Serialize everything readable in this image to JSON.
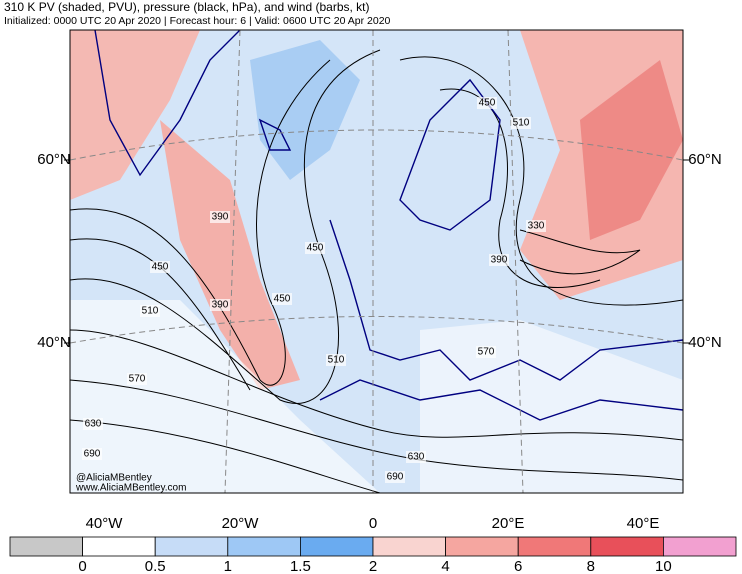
{
  "header": {
    "title": "310 K PV (shaded, PVU), pressure (black, hPa), and wind (barbs, kt)",
    "subtitle": "Initialized: 0000 UTC 20 Apr 2020 | Forecast hour: 6 | Valid: 0600 UTC 20 Apr 2020"
  },
  "latitude_labels": [
    "60°N",
    "40°N"
  ],
  "longitude_labels": [
    "40°W",
    "20°W",
    "0",
    "20°E",
    "40°E"
  ],
  "contour_labels": [
    "510",
    "450",
    "390",
    "450",
    "390",
    "450",
    "510",
    "450",
    "510",
    "570",
    "630",
    "690",
    "630",
    "690",
    "330",
    "390",
    "570"
  ],
  "credits": [
    "@AliciaMBentley",
    "www.AliciaMBentley.com"
  ],
  "colorbar": {
    "ticks": [
      0,
      0.5,
      1,
      1.5,
      2,
      4,
      6,
      8,
      10
    ],
    "colors": [
      "#c8c8c8",
      "#ffffff",
      "#c6dcf7",
      "#9ec8f5",
      "#6aabf0",
      "#f9d4d0",
      "#f5a6a0",
      "#f07878",
      "#e8505a",
      "#f2a0d0"
    ]
  }
}
